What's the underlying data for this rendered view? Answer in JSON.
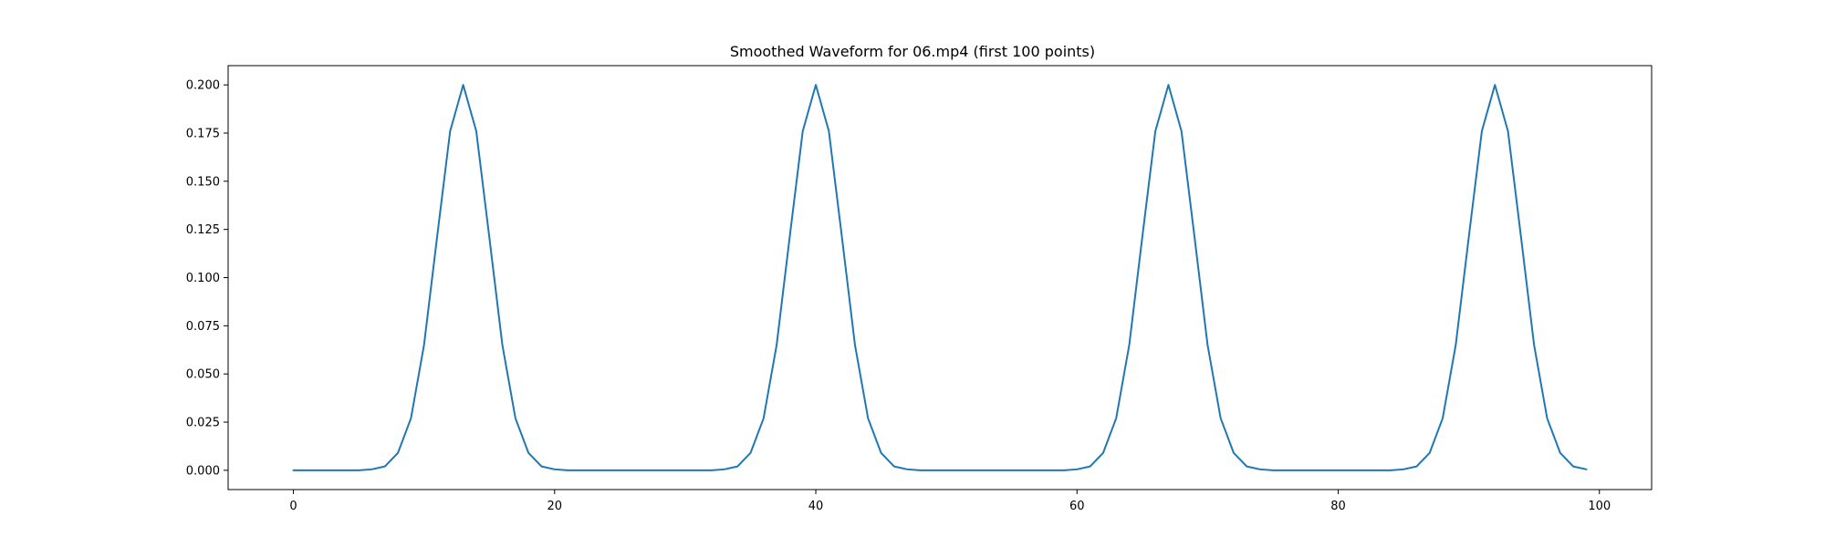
{
  "chart_data": {
    "type": "line",
    "title": "Smoothed Waveform for 06.mp4 (first 100 points)",
    "xlabel": "",
    "ylabel": "",
    "xlim": [
      -5,
      104
    ],
    "ylim": [
      -0.01,
      0.21
    ],
    "xticks": [
      0,
      20,
      40,
      60,
      80,
      100
    ],
    "xtick_labels": [
      "0",
      "20",
      "40",
      "60",
      "80",
      "100"
    ],
    "yticks": [
      0,
      0.025,
      0.05,
      0.075,
      0.1,
      0.125,
      0.15,
      0.175,
      0.2
    ],
    "ytick_labels": [
      "0.000",
      "0.025",
      "0.050",
      "0.075",
      "0.100",
      "0.125",
      "0.150",
      "0.175",
      "0.200"
    ],
    "grid": false,
    "series": [
      {
        "color": "#1f77b4",
        "x": [
          0,
          1,
          2,
          3,
          4,
          5,
          6,
          7,
          8,
          9,
          10,
          11,
          12,
          13,
          14,
          15,
          16,
          17,
          18,
          19,
          20,
          21,
          22,
          23,
          24,
          25,
          26,
          27,
          28,
          29,
          30,
          31,
          32,
          33,
          34,
          35,
          36,
          37,
          38,
          39,
          40,
          41,
          42,
          43,
          44,
          45,
          46,
          47,
          48,
          49,
          50,
          51,
          52,
          53,
          54,
          55,
          56,
          57,
          58,
          59,
          60,
          61,
          62,
          63,
          64,
          65,
          66,
          67,
          68,
          69,
          70,
          71,
          72,
          73,
          74,
          75,
          76,
          77,
          78,
          79,
          80,
          81,
          82,
          83,
          84,
          85,
          86,
          87,
          88,
          89,
          90,
          91,
          92,
          93,
          94,
          95,
          96,
          97,
          98,
          99
        ],
        "y": [
          0.0,
          0.0,
          0.0,
          0.0,
          0.0,
          0.0,
          0.0005,
          0.002,
          0.009,
          0.027,
          0.065,
          0.121,
          0.176,
          0.2,
          0.176,
          0.121,
          0.065,
          0.027,
          0.009,
          0.002,
          0.0005,
          0.0,
          0.0,
          0.0,
          0.0,
          0.0,
          0.0,
          0.0,
          0.0,
          0.0,
          0.0,
          0.0,
          0.0,
          0.0005,
          0.002,
          0.009,
          0.027,
          0.065,
          0.121,
          0.176,
          0.2,
          0.176,
          0.121,
          0.065,
          0.027,
          0.009,
          0.002,
          0.0005,
          0.0,
          0.0,
          0.0,
          0.0,
          0.0,
          0.0,
          0.0,
          0.0,
          0.0,
          0.0,
          0.0,
          0.0,
          0.0005,
          0.002,
          0.009,
          0.027,
          0.065,
          0.121,
          0.176,
          0.2,
          0.176,
          0.121,
          0.065,
          0.027,
          0.009,
          0.002,
          0.0005,
          0.0,
          0.0,
          0.0,
          0.0,
          0.0,
          0.0,
          0.0,
          0.0,
          0.0,
          0.0,
          0.0005,
          0.002,
          0.009,
          0.027,
          0.065,
          0.121,
          0.176,
          0.2,
          0.176,
          0.121,
          0.065,
          0.027,
          0.009,
          0.002,
          0.0005
        ]
      }
    ]
  }
}
